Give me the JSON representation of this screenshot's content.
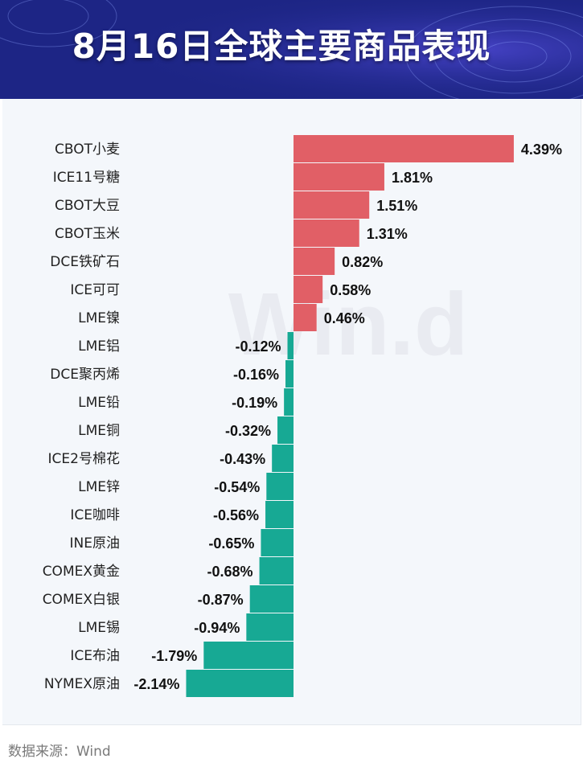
{
  "title": "8月16日全球主要商品表现",
  "source": "数据来源：Wind",
  "watermark": "Win.d",
  "colors": {
    "positive": "#e15f66",
    "negative": "#17a994",
    "header": "#1f2a8c"
  },
  "chart_data": {
    "type": "bar",
    "orientation": "horizontal",
    "unit": "%",
    "categories": [
      "CBOT小麦",
      "ICE11号糖",
      "CBOT大豆",
      "CBOT玉米",
      "DCE铁矿石",
      "ICE可可",
      "LME镍",
      "LME铝",
      "DCE聚丙烯",
      "LME铅",
      "LME铜",
      "ICE2号棉花",
      "LME锌",
      "ICE咖啡",
      "INE原油",
      "COMEX黄金",
      "COMEX白银",
      "LME锡",
      "ICE布油",
      "NYMEX原油"
    ],
    "values": [
      4.39,
      1.81,
      1.51,
      1.31,
      0.82,
      0.58,
      0.46,
      -0.12,
      -0.16,
      -0.19,
      -0.32,
      -0.43,
      -0.54,
      -0.56,
      -0.65,
      -0.68,
      -0.87,
      -0.94,
      -1.79,
      -2.14
    ],
    "labels": [
      "4.39%",
      "1.81%",
      "1.51%",
      "1.31%",
      "0.82%",
      "0.58%",
      "0.46%",
      "-0.12%",
      "-0.16%",
      "-0.19%",
      "-0.32%",
      "-0.43%",
      "-0.54%",
      "-0.56%",
      "-0.65%",
      "-0.68%",
      "-0.87%",
      "-0.94%",
      "-1.79%",
      "-2.14%"
    ]
  }
}
